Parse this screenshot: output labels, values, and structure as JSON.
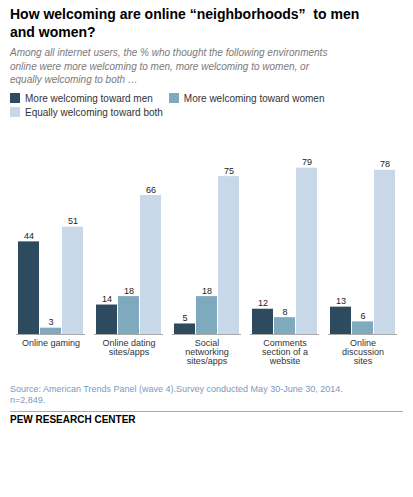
{
  "chart_data": {
    "type": "bar",
    "title": "How welcoming are online “neighborhoods”  to men\nand women?",
    "subtitle": "Among all internet users, the % who thought the following environments\nonline were more welcoming to men, more welcoming to women, or\nequally welcoming to both …",
    "categories": [
      "Online gaming",
      "Online dating\nsites/apps",
      "Social\nnetworking\nsites/apps",
      "Comments\nsection of a\nwebsite",
      "Online\ndiscussion\nsites"
    ],
    "series": [
      {
        "name": "More welcoming toward men",
        "color": "#2d4a5e",
        "values": [
          44,
          14,
          5,
          12,
          13
        ]
      },
      {
        "name": "More welcoming toward women",
        "color": "#7faabe",
        "values": [
          3,
          18,
          18,
          8,
          6
        ]
      },
      {
        "name": "Equally welcoming toward both",
        "color": "#c8d8e8",
        "values": [
          51,
          66,
          75,
          79,
          78
        ]
      }
    ],
    "ylim": [
      0,
      95
    ],
    "tick_labels": "x",
    "data_labels": true,
    "legend": "top",
    "source": "Source: American Trends Panel (wave 4).Survey conducted May 30-June 30, 2014.\nn=2,849.",
    "footer": "PEW RESEARCH CENTER"
  }
}
